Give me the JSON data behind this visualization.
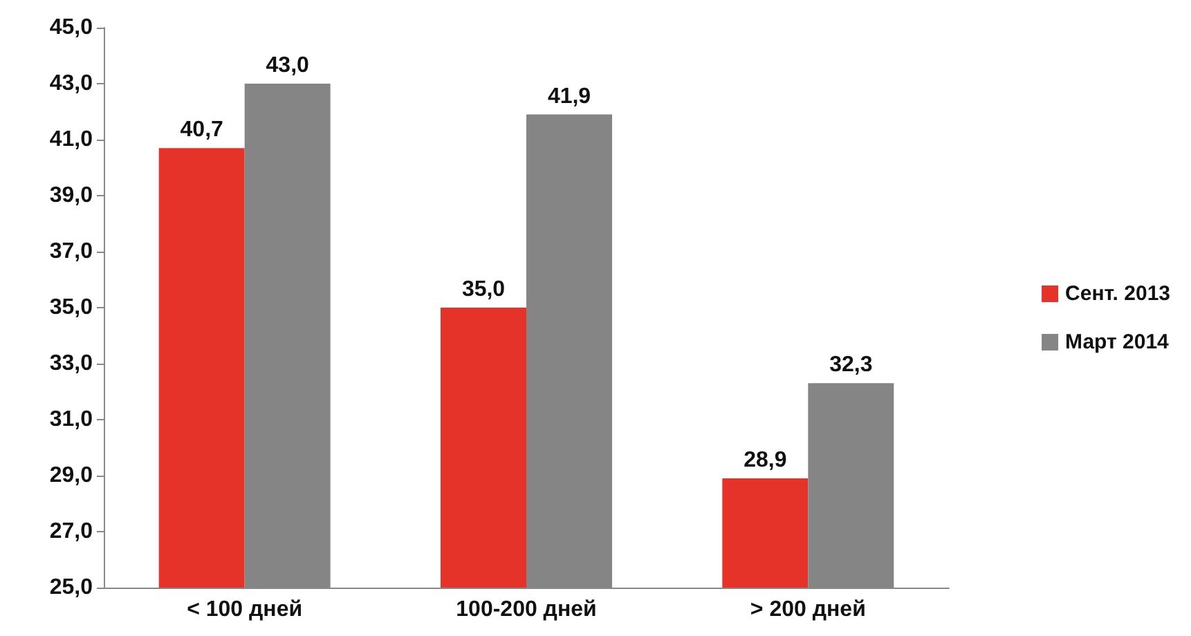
{
  "chart_data": {
    "type": "bar",
    "categories": [
      "< 100 дней",
      "100-200 дней",
      "> 200 дней"
    ],
    "series": [
      {
        "name": "Сент. 2013",
        "color": "#e5332a",
        "values": [
          40.7,
          35.0,
          28.9
        ],
        "value_labels": [
          "40,7",
          "35,0",
          "28,9"
        ]
      },
      {
        "name": "Март 2014",
        "color": "#858585",
        "values": [
          43.0,
          41.9,
          32.3
        ],
        "value_labels": [
          "43,0",
          "41,9",
          "32,3"
        ]
      }
    ],
    "ylim": [
      25,
      45
    ],
    "yticks": [
      {
        "value": 25,
        "label": "25,0"
      },
      {
        "value": 27,
        "label": "27,0"
      },
      {
        "value": 29,
        "label": "29,0"
      },
      {
        "value": 31,
        "label": "31,0"
      },
      {
        "value": 33,
        "label": "33,0"
      },
      {
        "value": 35,
        "label": "35,0"
      },
      {
        "value": 37,
        "label": "37,0"
      },
      {
        "value": 39,
        "label": "39,0"
      },
      {
        "value": 41,
        "label": "41,0"
      },
      {
        "value": 43,
        "label": "43,0"
      },
      {
        "value": 45,
        "label": "45,0"
      }
    ],
    "grid": false,
    "legend": "right"
  }
}
